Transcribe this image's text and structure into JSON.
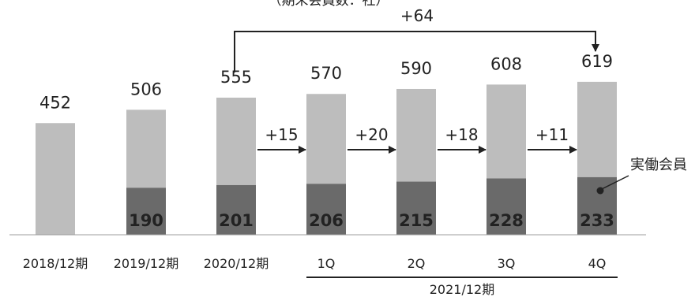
{
  "chart_data": {
    "type": "bar",
    "subtitle": "（期末会員数：社）",
    "categories": [
      "2018/12期",
      "2019/12期",
      "2020/12期",
      "1Q",
      "2Q",
      "3Q",
      "4Q"
    ],
    "group_label": "2021/12期",
    "series": [
      {
        "name": "実働会員",
        "values": [
          null,
          190,
          201,
          206,
          215,
          228,
          233
        ]
      }
    ],
    "totals": [
      452,
      506,
      555,
      570,
      590,
      608,
      619
    ],
    "increments": [
      "+15",
      "+20",
      "+18",
      "+11"
    ],
    "overall_increment": "+64",
    "legend_label": "実働会員",
    "colors": {
      "total": "#bdbdbd",
      "active": "#6a6a6a",
      "text": "#222222",
      "arrow": "#222222"
    }
  }
}
